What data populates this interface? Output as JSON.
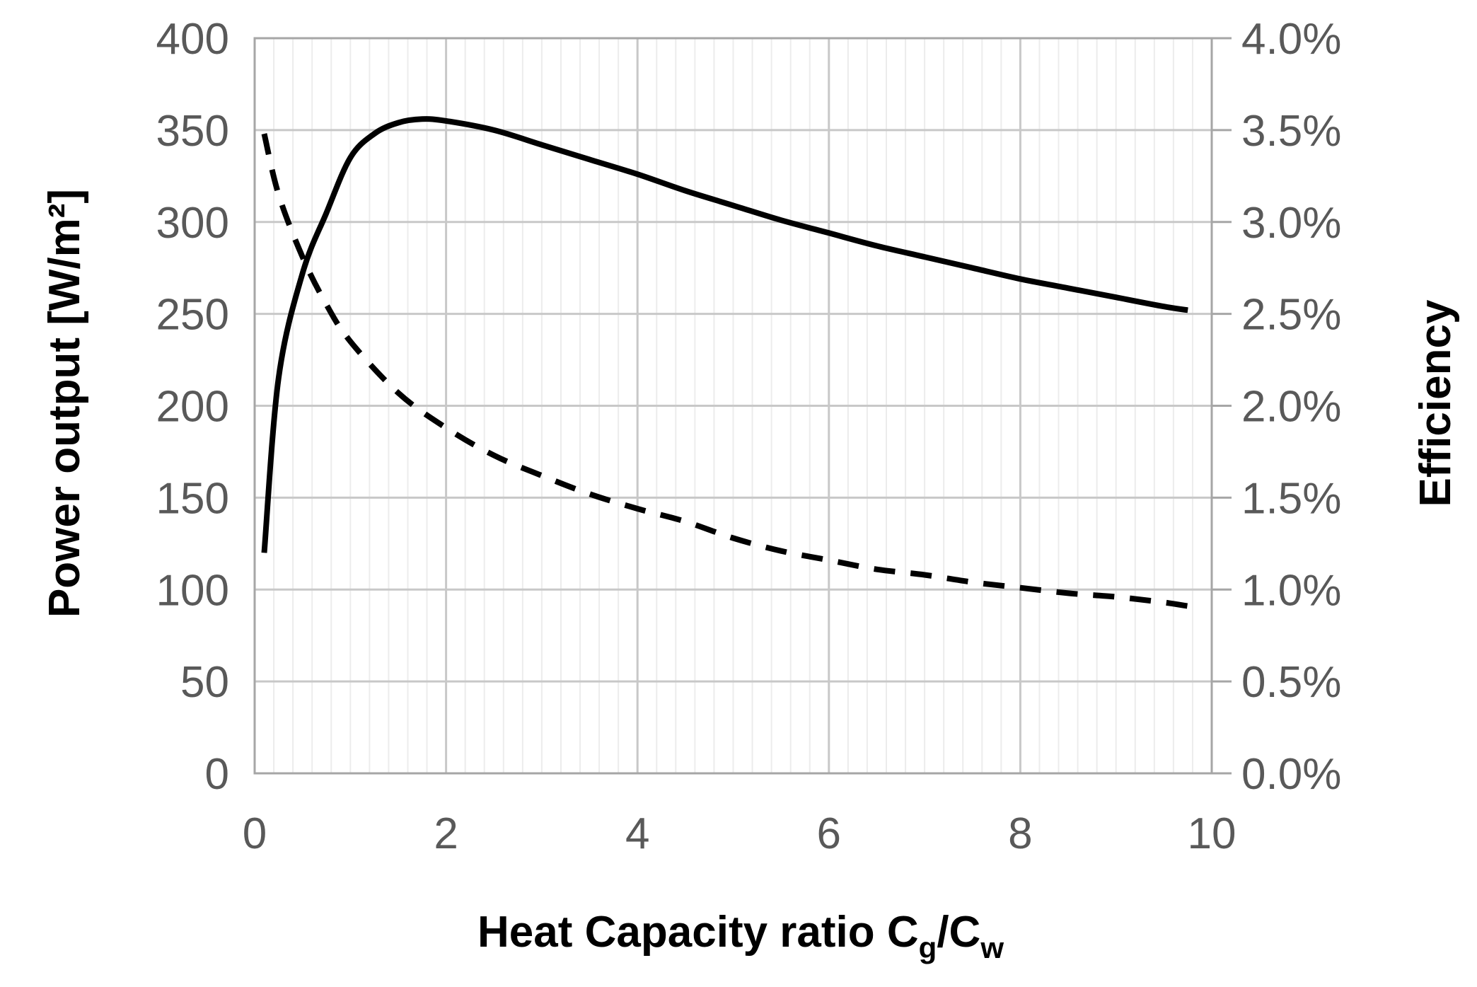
{
  "chart_data": {
    "type": "line",
    "title": "",
    "xlabel": "Heat Capacity ratio C",
    "xlabel_sub_1": "g",
    "xlabel_sep": "/C",
    "xlabel_sub_2": "w",
    "ylabel": "Power output [W/m²]",
    "y2label": "Efficiency",
    "xlim": [
      0,
      10
    ],
    "ylim": [
      0,
      400
    ],
    "y2lim": [
      0,
      0.04
    ],
    "grid": true,
    "x_ticks": [
      "0",
      "2",
      "4",
      "6",
      "8",
      "10"
    ],
    "y_ticks": [
      "0",
      "50",
      "100",
      "150",
      "200",
      "250",
      "300",
      "350",
      "400"
    ],
    "y2_ticks": [
      "0.0%",
      "0.5%",
      "1.0%",
      "1.5%",
      "2.0%",
      "2.5%",
      "3.0%",
      "3.5%",
      "4.0%"
    ],
    "series": [
      {
        "name": "Power output",
        "axis": "left",
        "style": "solid",
        "color": "#000000",
        "x": [
          0.1,
          0.25,
          0.5,
          0.75,
          1.0,
          1.25,
          1.5,
          1.75,
          2.0,
          2.5,
          3.0,
          3.5,
          4.0,
          4.5,
          5.0,
          5.5,
          6.0,
          6.5,
          7.0,
          7.5,
          8.0,
          8.5,
          9.0,
          9.5,
          9.75
        ],
        "y": [
          120,
          215,
          272,
          305,
          335,
          348,
          354,
          356,
          355,
          350,
          342,
          334,
          326,
          317,
          309,
          301,
          294,
          287,
          281,
          275,
          269,
          264,
          259,
          254,
          252
        ]
      },
      {
        "name": "Efficiency",
        "axis": "right",
        "style": "dashed",
        "color": "#000000",
        "x": [
          0.1,
          0.25,
          0.5,
          0.75,
          1.0,
          1.5,
          2.0,
          2.5,
          3.0,
          3.5,
          4.0,
          4.5,
          5.0,
          5.5,
          6.0,
          6.5,
          7.0,
          7.5,
          8.0,
          8.5,
          9.0,
          9.5,
          9.75
        ],
        "y": [
          0.0348,
          0.0315,
          0.0281,
          0.0255,
          0.0235,
          0.0207,
          0.0188,
          0.0173,
          0.0162,
          0.0152,
          0.0144,
          0.0137,
          0.0128,
          0.0121,
          0.0116,
          0.0111,
          0.0108,
          0.0104,
          0.0101,
          0.0098,
          0.0096,
          0.0093,
          0.0091
        ]
      }
    ]
  }
}
